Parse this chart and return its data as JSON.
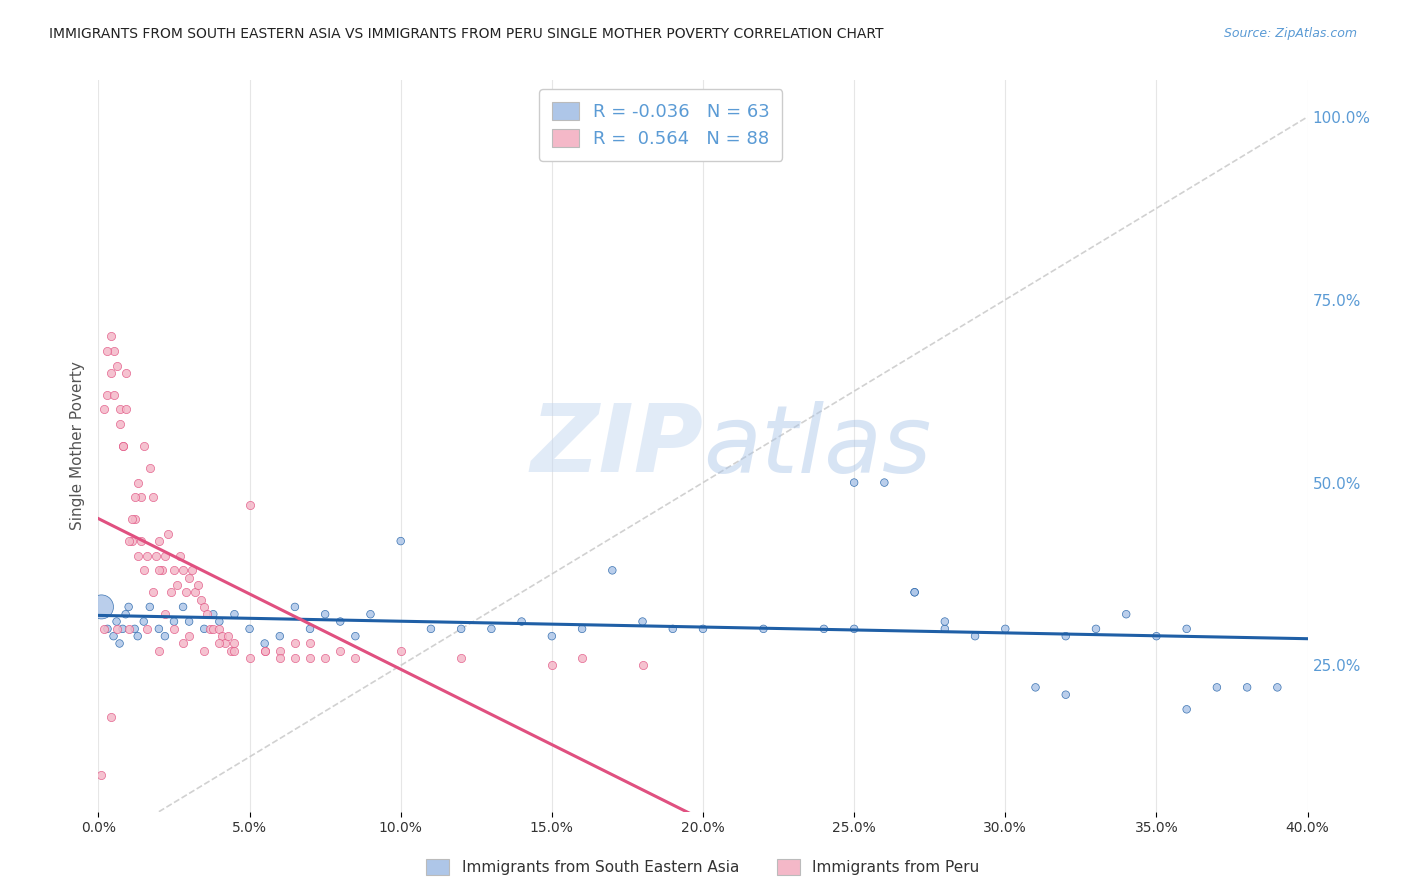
{
  "title": "IMMIGRANTS FROM SOUTH EASTERN ASIA VS IMMIGRANTS FROM PERU SINGLE MOTHER POVERTY CORRELATION CHART",
  "source": "Source: ZipAtlas.com",
  "ylabel": "Single Mother Poverty",
  "xlim": [
    0.0,
    0.4
  ],
  "ylim": [
    0.05,
    1.05
  ],
  "right_yticks": [
    0.25,
    0.5,
    0.75,
    1.0
  ],
  "right_yticklabels": [
    "25.0%",
    "50.0%",
    "75.0%",
    "100.0%"
  ],
  "series1_label": "Immigrants from South Eastern Asia",
  "series1_color": "#aec6e8",
  "series1_line_color": "#1f5fa6",
  "series1_R": "-0.036",
  "series1_N": "63",
  "series2_label": "Immigrants from Peru",
  "series2_color": "#f4b8c8",
  "series2_line_color": "#e05080",
  "series2_R": "0.564",
  "series2_N": "88",
  "watermark_zip": "ZIP",
  "watermark_atlas": "atlas",
  "background_color": "#ffffff",
  "grid_color": "#e0e0e0",
  "blue_scatter_x": [
    0.001,
    0.003,
    0.005,
    0.006,
    0.007,
    0.008,
    0.009,
    0.01,
    0.012,
    0.013,
    0.015,
    0.017,
    0.02,
    0.022,
    0.025,
    0.028,
    0.03,
    0.035,
    0.038,
    0.04,
    0.045,
    0.05,
    0.055,
    0.06,
    0.065,
    0.07,
    0.075,
    0.08,
    0.085,
    0.09,
    0.1,
    0.11,
    0.12,
    0.13,
    0.14,
    0.15,
    0.16,
    0.17,
    0.18,
    0.19,
    0.2,
    0.22,
    0.24,
    0.25,
    0.27,
    0.28,
    0.29,
    0.3,
    0.31,
    0.32,
    0.33,
    0.34,
    0.35,
    0.36,
    0.37,
    0.38,
    0.39,
    0.25,
    0.26,
    0.27,
    0.32,
    0.36,
    0.28
  ],
  "blue_scatter_y": [
    0.33,
    0.3,
    0.29,
    0.31,
    0.28,
    0.3,
    0.32,
    0.33,
    0.3,
    0.29,
    0.31,
    0.33,
    0.3,
    0.29,
    0.31,
    0.33,
    0.31,
    0.3,
    0.32,
    0.31,
    0.32,
    0.3,
    0.28,
    0.29,
    0.33,
    0.3,
    0.32,
    0.31,
    0.29,
    0.32,
    0.42,
    0.3,
    0.3,
    0.3,
    0.31,
    0.29,
    0.3,
    0.38,
    0.31,
    0.3,
    0.3,
    0.3,
    0.3,
    0.3,
    0.35,
    0.3,
    0.29,
    0.3,
    0.22,
    0.21,
    0.3,
    0.32,
    0.29,
    0.3,
    0.22,
    0.22,
    0.22,
    0.5,
    0.5,
    0.35,
    0.29,
    0.19,
    0.31
  ],
  "blue_scatter_sizes": [
    300,
    30,
    30,
    30,
    30,
    30,
    30,
    30,
    30,
    30,
    30,
    30,
    30,
    30,
    30,
    30,
    30,
    30,
    30,
    30,
    30,
    30,
    30,
    30,
    30,
    30,
    30,
    30,
    30,
    30,
    30,
    30,
    30,
    30,
    30,
    30,
    30,
    30,
    30,
    30,
    30,
    30,
    30,
    30,
    30,
    30,
    30,
    30,
    30,
    30,
    30,
    30,
    30,
    30,
    30,
    30,
    30,
    30,
    30,
    30,
    30,
    30,
    30
  ],
  "pink_scatter_x": [
    0.001,
    0.002,
    0.003,
    0.004,
    0.005,
    0.006,
    0.007,
    0.008,
    0.009,
    0.01,
    0.011,
    0.012,
    0.013,
    0.014,
    0.015,
    0.016,
    0.017,
    0.018,
    0.019,
    0.02,
    0.021,
    0.022,
    0.023,
    0.024,
    0.025,
    0.026,
    0.027,
    0.028,
    0.029,
    0.03,
    0.031,
    0.032,
    0.033,
    0.034,
    0.035,
    0.036,
    0.037,
    0.038,
    0.04,
    0.041,
    0.042,
    0.043,
    0.044,
    0.045,
    0.05,
    0.055,
    0.06,
    0.065,
    0.07,
    0.075,
    0.08,
    0.085,
    0.1,
    0.12,
    0.15,
    0.16,
    0.18,
    0.002,
    0.003,
    0.004,
    0.005,
    0.006,
    0.007,
    0.008,
    0.009,
    0.01,
    0.011,
    0.012,
    0.013,
    0.014,
    0.015,
    0.016,
    0.018,
    0.02,
    0.022,
    0.025,
    0.028,
    0.03,
    0.035,
    0.04,
    0.045,
    0.05,
    0.055,
    0.06,
    0.065,
    0.07,
    0.02,
    0.004
  ],
  "pink_scatter_y": [
    0.1,
    0.3,
    0.62,
    0.65,
    0.68,
    0.3,
    0.6,
    0.55,
    0.65,
    0.3,
    0.42,
    0.45,
    0.5,
    0.48,
    0.55,
    0.3,
    0.52,
    0.48,
    0.4,
    0.42,
    0.38,
    0.4,
    0.43,
    0.35,
    0.38,
    0.36,
    0.4,
    0.38,
    0.35,
    0.37,
    0.38,
    0.35,
    0.36,
    0.34,
    0.33,
    0.32,
    0.3,
    0.3,
    0.3,
    0.29,
    0.28,
    0.29,
    0.27,
    0.28,
    0.47,
    0.27,
    0.27,
    0.26,
    0.28,
    0.26,
    0.27,
    0.26,
    0.27,
    0.26,
    0.25,
    0.26,
    0.25,
    0.6,
    0.68,
    0.7,
    0.62,
    0.66,
    0.58,
    0.55,
    0.6,
    0.42,
    0.45,
    0.48,
    0.4,
    0.42,
    0.38,
    0.4,
    0.35,
    0.38,
    0.32,
    0.3,
    0.28,
    0.29,
    0.27,
    0.28,
    0.27,
    0.26,
    0.27,
    0.26,
    0.28,
    0.26,
    0.27,
    0.18
  ]
}
